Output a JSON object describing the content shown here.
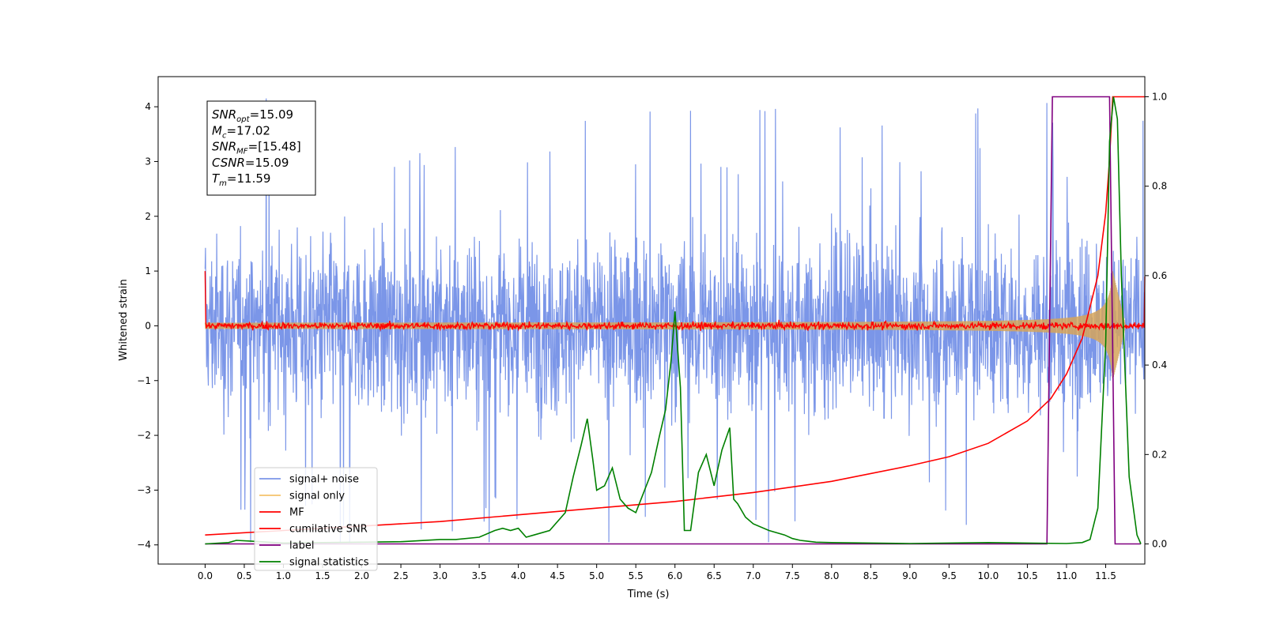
{
  "chart_data": {
    "type": "line",
    "xlabel": "Time (s)",
    "ylabel": "Whitened strain",
    "xlim": [
      -0.6,
      12.0
    ],
    "ylim_left": [
      -4.35,
      4.55
    ],
    "ylim_right": [
      -0.045,
      1.045
    ],
    "x_ticks": [
      0.0,
      0.5,
      1.0,
      1.5,
      2.0,
      2.5,
      3.0,
      3.5,
      4.0,
      4.5,
      5.0,
      5.5,
      6.0,
      6.5,
      7.0,
      7.5,
      8.0,
      8.5,
      9.0,
      9.5,
      10.0,
      10.5,
      11.0,
      11.5
    ],
    "x_tick_labels": [
      "0.0",
      "0.5",
      "1.0",
      "1.5",
      "2.0",
      "2.5",
      "3.0",
      "3.5",
      "4.0",
      "4.5",
      "5.0",
      "5.5",
      "6.0",
      "6.5",
      "7.0",
      "7.5",
      "8.0",
      "8.5",
      "9.0",
      "9.5",
      "10.0",
      "10.5",
      "11.0",
      "11.5"
    ],
    "y_left_ticks": [
      -4,
      -3,
      -2,
      -1,
      0,
      1,
      2,
      3,
      4
    ],
    "y_left_tick_labels": [
      "−4",
      "−3",
      "−2",
      "−1",
      "0",
      "1",
      "2",
      "3",
      "4"
    ],
    "y_right_ticks": [
      0.0,
      0.2,
      0.4,
      0.6,
      0.8,
      1.0
    ],
    "y_right_tick_labels": [
      "0.0",
      "0.2",
      "0.4",
      "0.6",
      "0.8",
      "1.0"
    ],
    "grid": false,
    "legend_position": "lower-left",
    "annotation_lines": [
      {
        "base": "SNR",
        "sub": "opt",
        "value": "=15.09"
      },
      {
        "base": "M",
        "sub": "c",
        "value": "=17.02"
      },
      {
        "base": "SNR",
        "sub": "MF",
        "value": "=[15.48]"
      },
      {
        "base": "CSNR",
        "sub": "",
        "value": "=15.09"
      },
      {
        "base": "T",
        "sub": "m",
        "value": "=11.59"
      }
    ],
    "series": [
      {
        "name": "signal+ noise",
        "color": "#7b96e8",
        "axis": "left",
        "kind": "noise",
        "x_range": [
          0.0,
          12.0
        ],
        "amplitude_typical": 2.3,
        "amplitude_peak": 4.2
      },
      {
        "name": "signal only",
        "color": "#f5c26b",
        "axis": "left",
        "kind": "chirp",
        "x_range": [
          0.0,
          12.0
        ],
        "amplitude_start": 0.05,
        "amplitude_end": 1.0,
        "merger_time": 11.59
      },
      {
        "name": "MF",
        "color": "#ff0000",
        "axis": "left",
        "kind": "noise_small",
        "x_range": [
          0.0,
          12.0
        ],
        "amplitude_typical": 0.1,
        "start_value": 1.0,
        "end_value": 0.9
      },
      {
        "name": "cumilative SNR",
        "color": "#ff0000",
        "axis": "right",
        "x": [
          0.0,
          1.0,
          2.0,
          3.0,
          4.0,
          5.0,
          6.0,
          7.0,
          8.0,
          9.0,
          9.5,
          10.0,
          10.5,
          10.8,
          11.0,
          11.2,
          11.4,
          11.5,
          11.55,
          11.59,
          12.0
        ],
        "y": [
          0.02,
          0.03,
          0.04,
          0.05,
          0.065,
          0.08,
          0.095,
          0.115,
          0.14,
          0.175,
          0.195,
          0.225,
          0.275,
          0.325,
          0.38,
          0.46,
          0.6,
          0.74,
          0.86,
          1.0,
          1.0
        ]
      },
      {
        "name": "label",
        "color": "#800080",
        "axis": "right",
        "x": [
          0.0,
          10.75,
          10.82,
          11.55,
          11.62,
          11.95
        ],
        "y": [
          0.0,
          0.0,
          1.0,
          1.0,
          0.0,
          0.0
        ]
      },
      {
        "name": "signal statistics",
        "color": "#008000",
        "axis": "right",
        "x": [
          0.0,
          0.3,
          0.4,
          0.6,
          1.0,
          1.5,
          2.0,
          2.5,
          3.0,
          3.2,
          3.5,
          3.7,
          3.8,
          3.9,
          4.0,
          4.1,
          4.2,
          4.4,
          4.6,
          4.7,
          4.8,
          4.88,
          4.95,
          5.0,
          5.1,
          5.2,
          5.3,
          5.4,
          5.5,
          5.7,
          5.8,
          5.88,
          5.95,
          6.0,
          6.07,
          6.12,
          6.2,
          6.3,
          6.4,
          6.5,
          6.6,
          6.7,
          6.75,
          6.8,
          6.9,
          7.0,
          7.2,
          7.4,
          7.5,
          7.6,
          7.8,
          8.0,
          8.5,
          9.0,
          10.0,
          10.5,
          11.0,
          11.2,
          11.3,
          11.4,
          11.5,
          11.55,
          11.6,
          11.65,
          11.7,
          11.8,
          11.9,
          11.95
        ],
        "y": [
          0.0,
          0.003,
          0.008,
          0.006,
          0.002,
          0.003,
          0.004,
          0.005,
          0.01,
          0.01,
          0.015,
          0.03,
          0.035,
          0.03,
          0.035,
          0.015,
          0.02,
          0.03,
          0.07,
          0.15,
          0.22,
          0.28,
          0.19,
          0.12,
          0.13,
          0.17,
          0.1,
          0.08,
          0.07,
          0.16,
          0.24,
          0.3,
          0.41,
          0.52,
          0.35,
          0.03,
          0.03,
          0.16,
          0.2,
          0.13,
          0.21,
          0.26,
          0.1,
          0.09,
          0.06,
          0.045,
          0.03,
          0.02,
          0.012,
          0.008,
          0.004,
          0.003,
          0.002,
          0.001,
          0.003,
          0.002,
          0.001,
          0.003,
          0.01,
          0.08,
          0.45,
          0.9,
          1.0,
          0.95,
          0.6,
          0.15,
          0.02,
          0.0
        ]
      }
    ]
  }
}
